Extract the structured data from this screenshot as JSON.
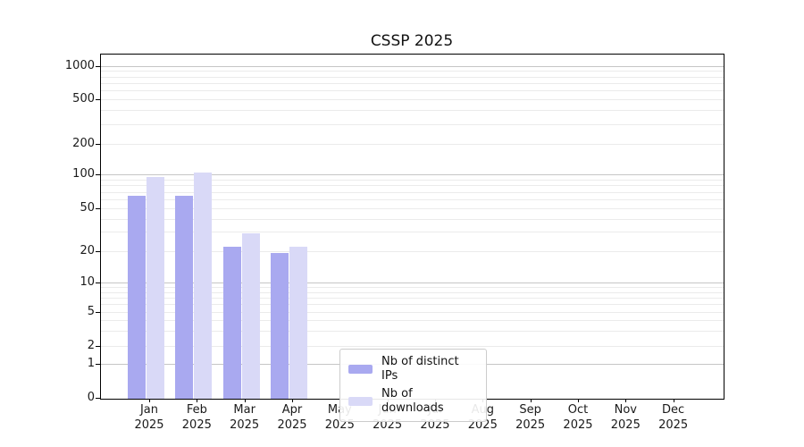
{
  "chart_data": {
    "type": "bar",
    "title": "CSSP 2025",
    "categories": [
      "Jan 2025",
      "Feb 2025",
      "Mar 2025",
      "Apr 2025",
      "May 2025",
      "Jun 2025",
      "Jul 2025",
      "Aug 2025",
      "Sep 2025",
      "Oct 2025",
      "Nov 2025",
      "Dec 2025"
    ],
    "series": [
      {
        "name": "Nb of distinct IPs",
        "color": "#a9a9f0",
        "values": [
          65,
          64,
          22,
          19,
          null,
          null,
          null,
          null,
          null,
          null,
          null,
          null
        ]
      },
      {
        "name": "Nb of downloads",
        "color": "#d9d9f7",
        "values": [
          95,
          105,
          29,
          22,
          null,
          null,
          null,
          null,
          null,
          null,
          null,
          null
        ]
      }
    ],
    "xlabel": "",
    "ylabel": "",
    "yscale": "symlog",
    "ylim": [
      0,
      1250
    ],
    "yticks": [
      0,
      1,
      2,
      5,
      10,
      20,
      50,
      100,
      200,
      500,
      1000
    ],
    "major_gridlines": [
      1,
      10,
      100,
      1000
    ],
    "minor_gridlines": [
      2,
      3,
      4,
      5,
      6,
      7,
      8,
      9,
      20,
      30,
      40,
      50,
      60,
      70,
      80,
      90,
      200,
      300,
      400,
      500,
      600,
      700,
      800,
      900
    ],
    "grid": "horizontal",
    "legend_position": "inside-bottom-center"
  },
  "legend": {
    "items": [
      {
        "label": "Nb of distinct IPs",
        "color": "#a9a9f0"
      },
      {
        "label": "Nb of downloads",
        "color": "#d9d9f7"
      }
    ]
  }
}
